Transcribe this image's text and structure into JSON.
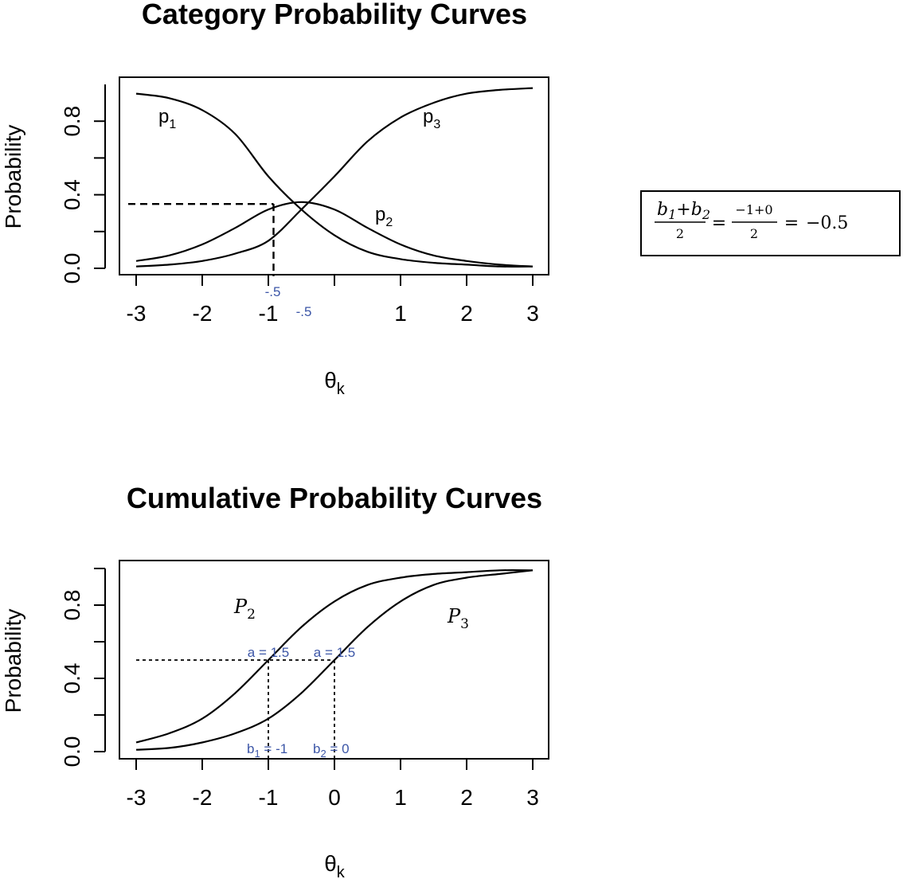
{
  "chart_data": [
    {
      "type": "line",
      "title": "Category Probability Curves",
      "xlabel": "θ",
      "xlabel_sub": "k",
      "ylabel": "Probability",
      "xlim": [
        -3,
        3
      ],
      "ylim": [
        0,
        1
      ],
      "x_ticks": [
        "-3",
        "-2",
        "-1",
        "-.5",
        "1",
        "2",
        "3"
      ],
      "x_tick_values": [
        -3,
        -2,
        -1,
        -0.5,
        1,
        2,
        3
      ],
      "y_ticks": [
        "0.0",
        "0.4",
        "0.8"
      ],
      "y_tick_values": [
        0,
        0.4,
        0.8
      ],
      "y_minor_tick_values": [
        0.2,
        0.6
      ],
      "series": [
        {
          "name": "p1",
          "x": [
            -3,
            -2.5,
            -2,
            -1.5,
            -1,
            -0.5,
            0,
            0.5,
            1,
            1.5,
            2,
            2.5,
            3
          ],
          "y": [
            0.95,
            0.925,
            0.86,
            0.73,
            0.5,
            0.32,
            0.18,
            0.09,
            0.05,
            0.03,
            0.02,
            0.01,
            0.01
          ]
        },
        {
          "name": "p2",
          "x": [
            -3,
            -2.5,
            -2,
            -1.5,
            -1,
            -0.5,
            0,
            0.5,
            1,
            1.5,
            2,
            2.5,
            3
          ],
          "y": [
            0.04,
            0.07,
            0.13,
            0.22,
            0.32,
            0.36,
            0.32,
            0.22,
            0.13,
            0.07,
            0.04,
            0.02,
            0.01
          ]
        },
        {
          "name": "p3",
          "x": [
            -3,
            -2.5,
            -2,
            -1.5,
            -1,
            -0.5,
            0,
            0.5,
            1,
            1.5,
            2,
            2.5,
            3
          ],
          "y": [
            0.01,
            0.02,
            0.04,
            0.08,
            0.15,
            0.32,
            0.5,
            0.69,
            0.82,
            0.9,
            0.95,
            0.97,
            0.98
          ]
        }
      ],
      "labels": {
        "p1": {
          "base": "p",
          "sub": "1"
        },
        "p2": {
          "base": "p",
          "sub": "2"
        },
        "p3": {
          "base": "p",
          "sub": "3"
        }
      },
      "annotations": {
        "dash_x": -0.5,
        "dash_y": 0.35,
        "marker_label": "-.5"
      }
    },
    {
      "type": "line",
      "title": "Cumulative Probability Curves",
      "xlabel": "θ",
      "xlabel_sub": "k",
      "ylabel": "Probability",
      "xlim": [
        -3,
        3
      ],
      "ylim": [
        0,
        1
      ],
      "x_ticks": [
        "-3",
        "-2",
        "-1",
        "0",
        "1",
        "2",
        "3"
      ],
      "x_tick_values": [
        -3,
        -2,
        -1,
        0,
        1,
        2,
        3
      ],
      "y_ticks": [
        "0.0",
        "0.4",
        "0.8"
      ],
      "y_tick_values": [
        0,
        0.4,
        0.8
      ],
      "y_minor_tick_values": [
        0.2,
        0.6,
        1.0
      ],
      "series": [
        {
          "name": "P2",
          "x": [
            -3,
            -2.5,
            -2,
            -1.5,
            -1,
            -0.5,
            0,
            0.5,
            1,
            1.5,
            2,
            2.5,
            3
          ],
          "y": [
            0.05,
            0.1,
            0.18,
            0.32,
            0.5,
            0.68,
            0.82,
            0.91,
            0.95,
            0.97,
            0.98,
            0.99,
            0.99
          ]
        },
        {
          "name": "P3",
          "x": [
            -3,
            -2.5,
            -2,
            -1.5,
            -1,
            -0.5,
            0,
            0.5,
            1,
            1.5,
            2,
            2.5,
            3
          ],
          "y": [
            0.01,
            0.02,
            0.05,
            0.1,
            0.18,
            0.32,
            0.5,
            0.68,
            0.82,
            0.91,
            0.95,
            0.97,
            0.99
          ]
        }
      ],
      "labels": {
        "P2": {
          "base": "P",
          "sub": "2"
        },
        "P3": {
          "base": "P",
          "sub": "3"
        }
      },
      "annotations": {
        "dash_y": 0.5,
        "a_labels": [
          "a = 1.5",
          "a = 1.5"
        ],
        "b1": {
          "x": -1,
          "base": "b",
          "sub": "1",
          "rest": "= -1"
        },
        "b2": {
          "x": 0,
          "base": "b",
          "sub": "2",
          "rest": "= 0"
        }
      }
    }
  ],
  "formula": {
    "b1": "b",
    "b1_sub": "1",
    "plus": "+",
    "b2": "b",
    "b2_sub": "2",
    "den": "2",
    "eq": "=",
    "num2": "−1+0",
    "den2": "2",
    "result": "−0.5"
  }
}
